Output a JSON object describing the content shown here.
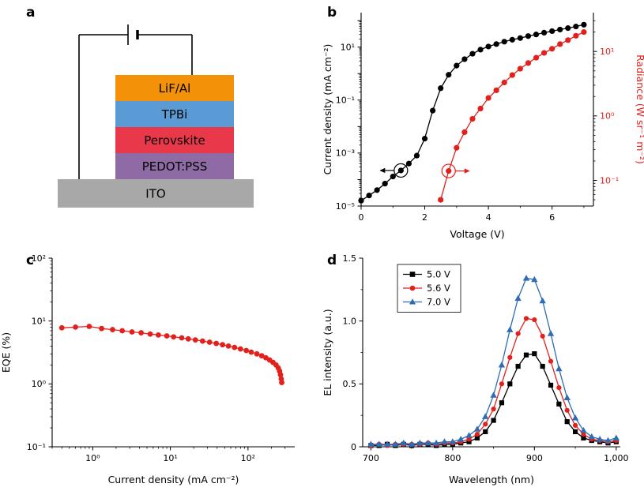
{
  "figure": {
    "background": "#ffffff"
  },
  "panels": {
    "a": {
      "label": "a"
    },
    "b": {
      "label": "b"
    },
    "c": {
      "label": "c"
    },
    "d": {
      "label": "d"
    }
  },
  "device": {
    "wire_color": "#000000",
    "layers": [
      {
        "name": "LiF/Al",
        "color": "#F39208"
      },
      {
        "name": "TPBi",
        "color": "#5B9BD5"
      },
      {
        "name": "Perovskite",
        "color": "#E8384A"
      },
      {
        "name": "PEDOT:PSS",
        "color": "#8E6BA4"
      },
      {
        "name": "ITO",
        "color": "#A8A8A8"
      }
    ]
  },
  "chart_data": [
    {
      "id": "b",
      "type": "line",
      "xlabel": "Voltage (V)",
      "ylabel": "Current density (mA cm⁻²)",
      "y2label": "Radiance (W sr⁻¹ m⁻²)",
      "xscale": "linear",
      "xlim": [
        0,
        7.3
      ],
      "xticks": [
        {
          "v": 0,
          "label": "0"
        },
        {
          "v": 2,
          "label": "2"
        },
        {
          "v": 4,
          "label": "4"
        },
        {
          "v": 6,
          "label": "6"
        }
      ],
      "xminor": [
        1,
        3,
        5,
        7
      ],
      "yscale": "log",
      "ylim": [
        1e-05,
        200
      ],
      "yticks": [
        {
          "v": 1e-05,
          "label": "10⁻⁵"
        },
        {
          "v": 0.001,
          "label": "10⁻³"
        },
        {
          "v": 0.1,
          "label": "10⁻¹"
        },
        {
          "v": 10,
          "label": "10¹"
        }
      ],
      "y2scale": "log",
      "y2lim": [
        0.04,
        40
      ],
      "y2ticks": [
        {
          "v": 0.1,
          "label": "10⁻¹"
        },
        {
          "v": 1,
          "label": "10⁰"
        },
        {
          "v": 10,
          "label": "10¹"
        }
      ],
      "axis_colors": {
        "left": "#000000",
        "right": "#E2201C"
      },
      "series": [
        {
          "name": "Current density",
          "color": "#000000",
          "marker": "circle",
          "axis": "left",
          "msize": 3.6,
          "x": [
            0,
            0.25,
            0.5,
            0.75,
            1,
            1.25,
            1.5,
            1.75,
            2,
            2.25,
            2.5,
            2.75,
            3,
            3.25,
            3.5,
            3.75,
            4,
            4.25,
            4.5,
            4.75,
            5,
            5.25,
            5.5,
            5.75,
            6,
            6.25,
            6.5,
            6.75,
            7
          ],
          "y": [
            1.6e-05,
            2.5e-05,
            4e-05,
            7e-05,
            0.00013,
            0.00022,
            0.0004,
            0.0008,
            0.0035,
            0.04,
            0.28,
            0.9,
            2,
            3.5,
            5.6,
            8,
            10.5,
            13,
            16,
            19,
            22,
            26,
            30,
            35,
            40,
            46,
            52,
            60,
            70
          ]
        },
        {
          "name": "Radiance",
          "color": "#E2201C",
          "marker": "circle",
          "axis": "right",
          "msize": 3.6,
          "x": [
            2.5,
            2.75,
            3,
            3.25,
            3.5,
            3.75,
            4,
            4.25,
            4.5,
            4.75,
            5,
            5.25,
            5.5,
            5.75,
            6,
            6.25,
            6.5,
            6.75,
            7
          ],
          "y": [
            0.05,
            0.14,
            0.32,
            0.56,
            0.9,
            1.3,
            1.9,
            2.5,
            3.3,
            4.3,
            5.4,
            6.6,
            8,
            9.5,
            11,
            13,
            15,
            17.5,
            20
          ]
        }
      ],
      "annotations": [
        {
          "x": 1.25,
          "y": 0.00022,
          "axis": "left",
          "dir": "left",
          "color": "#000000"
        },
        {
          "x": 2.75,
          "y": 0.14,
          "axis": "right",
          "dir": "right",
          "color": "#E2201C"
        }
      ]
    },
    {
      "id": "c",
      "type": "line",
      "xlabel": "Current density (mA cm⁻²)",
      "ylabel": "EQE (%)",
      "xscale": "log",
      "xlim": [
        0.3,
        400
      ],
      "xticks": [
        {
          "v": 1,
          "label": "10⁰"
        },
        {
          "v": 10,
          "label": "10¹"
        },
        {
          "v": 100,
          "label": "10²"
        }
      ],
      "yscale": "log",
      "ylim": [
        0.1,
        100
      ],
      "yticks": [
        {
          "v": 0.1,
          "label": "10⁻¹"
        },
        {
          "v": 1,
          "label": "10⁰"
        },
        {
          "v": 10,
          "label": "10¹"
        },
        {
          "v": 100,
          "label": "10²"
        }
      ],
      "series": [
        {
          "name": "EQE",
          "color": "#E2201C",
          "marker": "circle",
          "axis": "left",
          "msize": 3.4,
          "x": [
            0.4,
            0.6,
            0.9,
            1.3,
            1.8,
            2.4,
            3.2,
            4.2,
            5.5,
            7,
            9,
            11,
            14,
            17,
            21,
            26,
            32,
            39,
            47,
            56,
            67,
            80,
            95,
            110,
            130,
            150,
            170,
            190,
            210,
            230,
            245,
            255,
            262,
            268,
            272
          ],
          "y": [
            7.8,
            8.0,
            8.2,
            7.6,
            7.3,
            7.0,
            6.7,
            6.5,
            6.2,
            6.0,
            5.8,
            5.6,
            5.4,
            5.2,
            5.0,
            4.8,
            4.6,
            4.4,
            4.2,
            4.0,
            3.8,
            3.6,
            3.4,
            3.2,
            3.0,
            2.8,
            2.6,
            2.4,
            2.2,
            2.0,
            1.8,
            1.6,
            1.4,
            1.2,
            1.05
          ]
        }
      ]
    },
    {
      "id": "d",
      "type": "line",
      "xlabel": "Wavelength (nm)",
      "ylabel": "EL intensity (a.u.)",
      "xscale": "linear",
      "xlim": [
        690,
        1005
      ],
      "xticks": [
        {
          "v": 700,
          "label": "700"
        },
        {
          "v": 800,
          "label": "800"
        },
        {
          "v": 900,
          "label": "900"
        },
        {
          "v": 1000,
          "label": "1,000"
        }
      ],
      "xminor": [
        750,
        850,
        950
      ],
      "yscale": "linear",
      "ylim": [
        0,
        1.5
      ],
      "yticks": [
        {
          "v": 0,
          "label": "0"
        },
        {
          "v": 0.5,
          "label": "0.5"
        },
        {
          "v": 1,
          "label": "1.0"
        },
        {
          "v": 1.5,
          "label": "1.5"
        }
      ],
      "yminor": [
        0.25,
        0.75,
        1.25
      ],
      "legend": {
        "position": "top-left",
        "dx": 44,
        "dy": 8,
        "w": 80
      },
      "x_shared": [
        700,
        710,
        720,
        730,
        740,
        750,
        760,
        770,
        780,
        790,
        800,
        810,
        820,
        830,
        840,
        850,
        860,
        870,
        880,
        890,
        900,
        910,
        920,
        930,
        940,
        950,
        960,
        970,
        980,
        990,
        1000
      ],
      "series": [
        {
          "name": "5.0 V",
          "color": "#000000",
          "marker": "square",
          "axis": "left",
          "msize": 3.1,
          "y": [
            0.01,
            0.01,
            0.02,
            0.01,
            0.02,
            0.01,
            0.02,
            0.02,
            0.01,
            0.02,
            0.02,
            0.03,
            0.04,
            0.07,
            0.12,
            0.21,
            0.35,
            0.5,
            0.64,
            0.73,
            0.74,
            0.64,
            0.49,
            0.34,
            0.2,
            0.12,
            0.07,
            0.05,
            0.04,
            0.03,
            0.04
          ]
        },
        {
          "name": "5.6 V",
          "color": "#E2201C",
          "marker": "circle",
          "axis": "left",
          "msize": 3.1,
          "y": [
            0.01,
            0.02,
            0.01,
            0.02,
            0.02,
            0.02,
            0.02,
            0.03,
            0.02,
            0.03,
            0.03,
            0.04,
            0.06,
            0.1,
            0.18,
            0.3,
            0.5,
            0.71,
            0.9,
            1.02,
            1.01,
            0.88,
            0.68,
            0.47,
            0.29,
            0.17,
            0.1,
            0.06,
            0.05,
            0.04,
            0.05
          ]
        },
        {
          "name": "7.0 V",
          "color": "#2E6DB4",
          "marker": "triangle",
          "axis": "left",
          "msize": 3.4,
          "y": [
            0.02,
            0.02,
            0.02,
            0.02,
            0.03,
            0.02,
            0.03,
            0.03,
            0.03,
            0.04,
            0.04,
            0.06,
            0.09,
            0.14,
            0.24,
            0.41,
            0.65,
            0.93,
            1.18,
            1.34,
            1.33,
            1.16,
            0.9,
            0.62,
            0.39,
            0.23,
            0.13,
            0.08,
            0.06,
            0.05,
            0.07
          ]
        }
      ]
    }
  ]
}
